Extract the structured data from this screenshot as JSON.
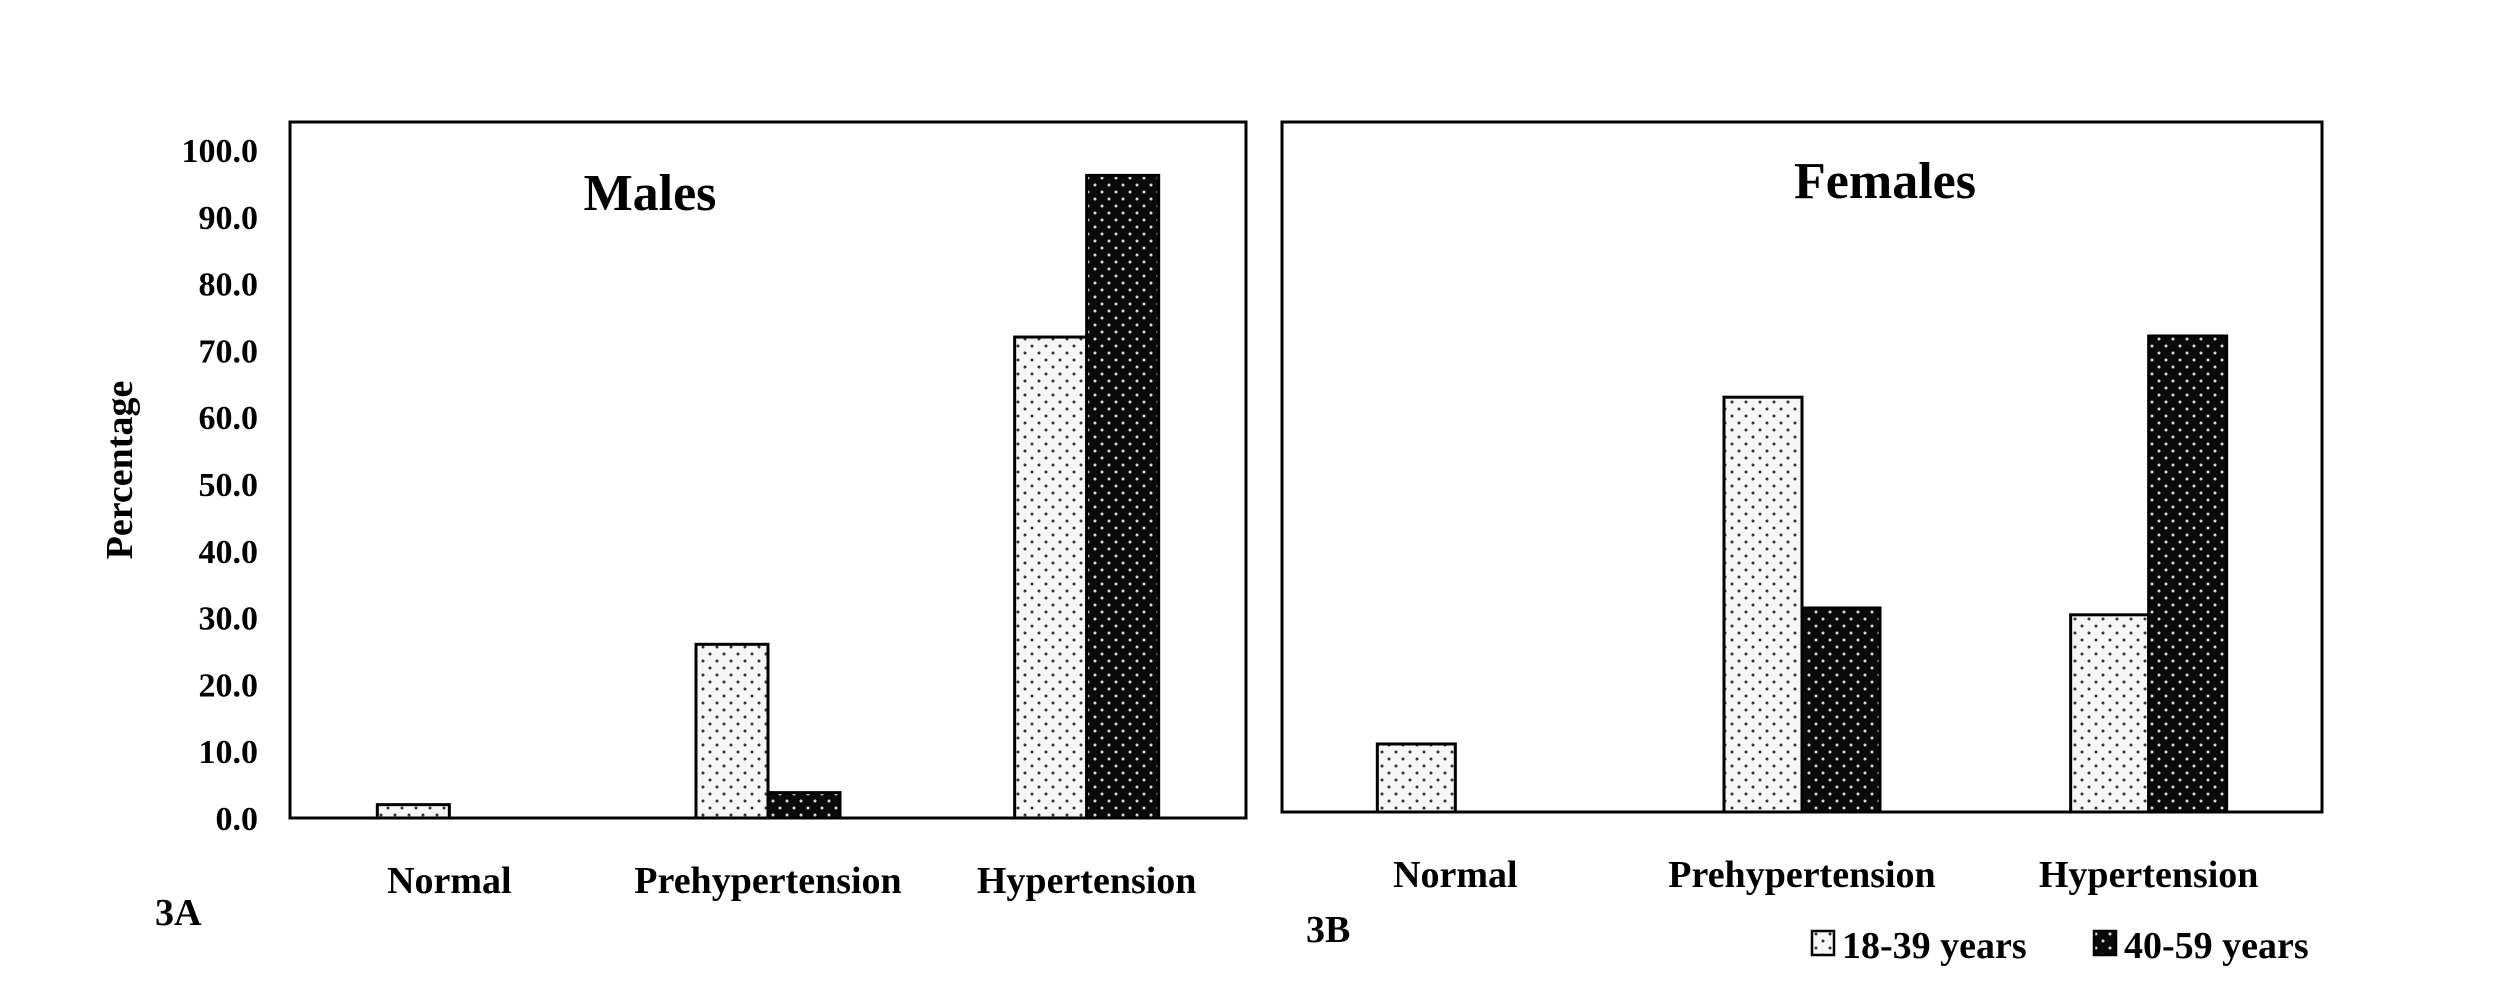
{
  "chart_data": [
    {
      "type": "bar",
      "panel_label": "3A",
      "title": "Males",
      "ylabel": "Percentage",
      "xlabel": "",
      "categories": [
        "Normal",
        "Prehypertension",
        "Hypertension"
      ],
      "ylim": [
        0,
        100
      ],
      "yticks": [
        "0.0",
        "10.0",
        "20.0",
        "30.0",
        "40.0",
        "50.0",
        "60.0",
        "70.0",
        "80.0",
        "90.0",
        "100.0"
      ],
      "grid": false,
      "series": [
        {
          "name": "18-39 years",
          "values": [
            2.0,
            26.0,
            72.0
          ]
        },
        {
          "name": "40-59 years",
          "values": [
            0.0,
            3.8,
            96.2
          ]
        }
      ]
    },
    {
      "type": "bar",
      "panel_label": "3B",
      "title": "Females",
      "ylabel": "",
      "xlabel": "",
      "categories": [
        "Normal",
        "Prehypertension",
        "Hypertension"
      ],
      "ylim": [
        0,
        100
      ],
      "grid": false,
      "series": [
        {
          "name": "18-39 years",
          "values": [
            10.0,
            61.0,
            29.0
          ]
        },
        {
          "name": "40-59 years",
          "values": [
            0.0,
            30.0,
            70.0
          ]
        }
      ]
    }
  ],
  "legend": {
    "placement": "bottom-right",
    "items": [
      {
        "label": "18-39 years",
        "style": "light-dotted"
      },
      {
        "label": "40-59 years",
        "style": "dark-dotted"
      }
    ]
  },
  "colors": {
    "light_fill": "#f6f6f6",
    "dark_fill": "#0a0a0a",
    "outline": "#000000"
  }
}
